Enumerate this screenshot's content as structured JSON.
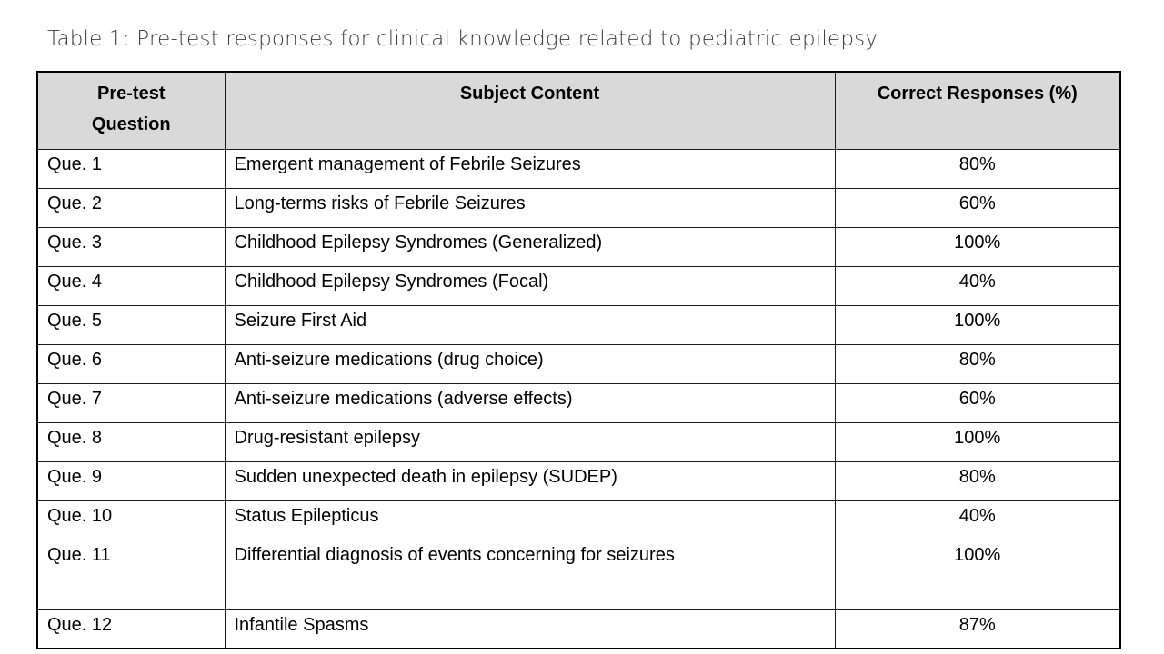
{
  "page": {
    "title": "Table 1: Pre-test responses for clinical knowledge related to pediatric epilepsy"
  },
  "colors": {
    "header_background": "#d9d9d9",
    "border": "#000000",
    "title_text": "#3d3d3d",
    "body_text": "#000000"
  },
  "table": {
    "headers": {
      "question": "Pre-test Question",
      "content": "Subject Content",
      "correct": "Correct Responses (%)"
    },
    "rows": [
      {
        "question": "Que. 1",
        "content": "Emergent management of Febrile Seizures",
        "correct": "80%"
      },
      {
        "question": "Que. 2",
        "content": "Long-terms risks of Febrile Seizures",
        "correct": "60%"
      },
      {
        "question": "Que. 3",
        "content": "Childhood Epilepsy Syndromes (Generalized)",
        "correct": "100%"
      },
      {
        "question": "Que. 4",
        "content": "Childhood Epilepsy Syndromes (Focal)",
        "correct": "40%"
      },
      {
        "question": "Que. 5",
        "content": "Seizure First Aid",
        "correct": "100%"
      },
      {
        "question": "Que. 6",
        "content": "Anti-seizure medications (drug choice)",
        "correct": "80%"
      },
      {
        "question": "Que. 7",
        "content": "Anti-seizure medications (adverse effects)",
        "correct": "60%"
      },
      {
        "question": "Que. 8",
        "content": "Drug-resistant epilepsy",
        "correct": "100%"
      },
      {
        "question": "Que. 9",
        "content": "Sudden unexpected death in epilepsy (SUDEP)",
        "correct": "80%"
      },
      {
        "question": "Que. 10",
        "content": "Status Epilepticus",
        "correct": "40%"
      },
      {
        "question": "Que. 11",
        "content": "Differential diagnosis of events concerning for seizures",
        "correct": "100%"
      },
      {
        "question": "Que. 12",
        "content": "Infantile Spasms",
        "correct": "87%"
      }
    ]
  }
}
